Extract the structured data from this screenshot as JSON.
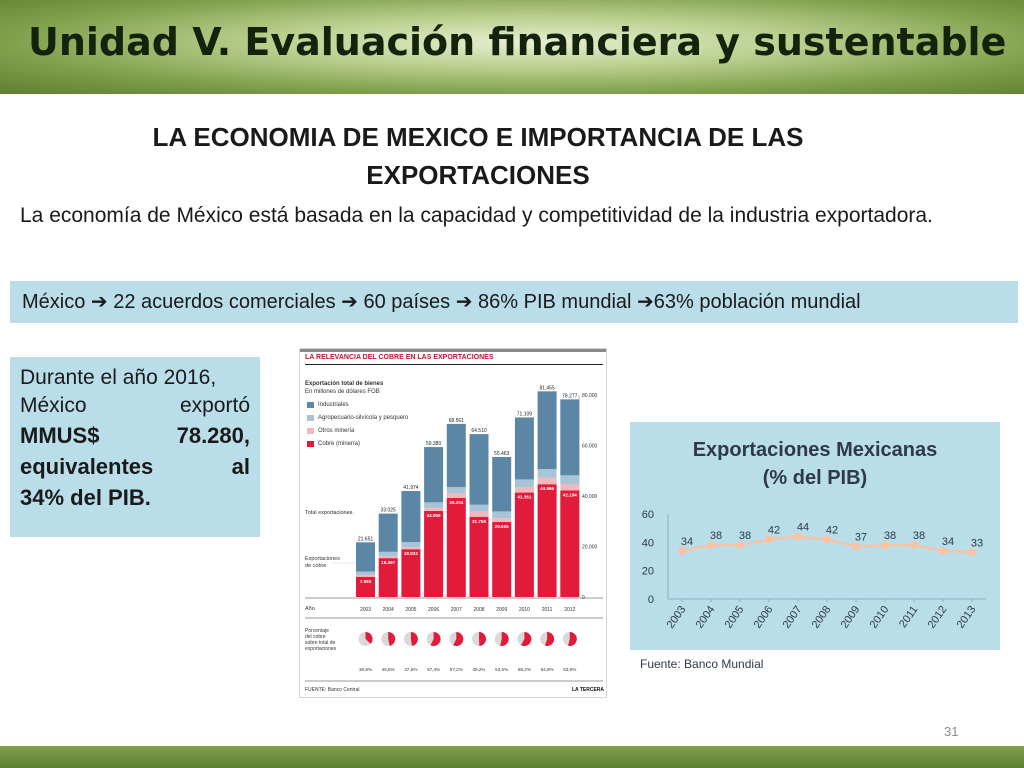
{
  "header": {
    "title": "Unidad V. Evaluación financiera y sustentable"
  },
  "section": {
    "title_line1": "LA ECONOMIA DE MEXICO E IMPORTANCIA DE LAS",
    "title_line2": "EXPORTACIONES"
  },
  "intro_text": "La economía de México está basada en la capacidad y competitividad de la industria exportadora.",
  "banner_text": "México  22 acuerdos comerciales  60 países  86% PIB mundial 63% población mundial",
  "banner": {
    "p1": "México ",
    "p2": " 22 acuerdos comerciales ",
    "p3": " 60 países ",
    "p4": " 86% PIB mundial ",
    "p5": "63% población mundial",
    "arrow": "➔"
  },
  "callout": {
    "l1a": "Durante el año 2016,",
    "l2a": "México",
    "l2b": "exportó",
    "l3a": "MMUS$",
    "l3b": "78.280,",
    "l4a": "equivalentes",
    "l4b": "al",
    "l5a": "34% del PIB."
  },
  "infographic": {
    "title": "LA RELEVANCIA DEL COBRE EN LAS EXPORTACIONES",
    "subtitle_bold": "Exportación total de bienes",
    "subtitle": "En millones de dólares FOB",
    "legend": [
      "Industriales",
      "Agropecuario-silvícola y pesquero",
      "Otros minería",
      "Cobre (minería)"
    ],
    "colors": {
      "industriales": "#5b86a6",
      "agro": "#a9c4d8",
      "otros": "#f2b8bd",
      "cobre": "#e31b3b"
    },
    "label_total": "Total exportaciones",
    "label_cobre_1": "Exportaciones",
    "label_cobre_2": "de cobre",
    "label_year": "Año",
    "label_pct_1": "Porcentaje",
    "label_pct_2": "del cobre",
    "label_pct_3": "sobre total de",
    "label_pct_4": "exportaciones",
    "yaxis_ticks": [
      "0",
      "20.000",
      "40.000",
      "60.000",
      "80.000"
    ],
    "source": "FUENTE: Banco Central",
    "brand": "LA TERCERA",
    "years": [
      "2003",
      "2004",
      "2005",
      "2006",
      "2007",
      "2008",
      "2009",
      "2010",
      "2011",
      "2012"
    ],
    "totals": [
      21651,
      33025,
      41974,
      59380,
      68561,
      64510,
      55463,
      71109,
      81455,
      78277
    ],
    "totals_labels": [
      "21.651",
      "33.025",
      "41.974",
      "59.380",
      "68.561",
      "64.510",
      "55.463",
      "71.109",
      "81.455",
      "78.277"
    ],
    "cobre": [
      7995,
      15397,
      18932,
      34069,
      39204,
      31755,
      29695,
      41361,
      44666,
      42184
    ],
    "cobre_labels": [
      "7.995",
      "15.397",
      "18.932",
      "34.069",
      "39.204",
      "31.755",
      "29.695",
      "41.361",
      "44.666",
      "42.184"
    ],
    "otros": [
      600,
      700,
      800,
      1200,
      1800,
      2000,
      1500,
      2200,
      2500,
      2400
    ],
    "agro": [
      1500,
      1800,
      2000,
      2200,
      2500,
      2800,
      2700,
      3000,
      3500,
      3600
    ],
    "pct": [
      36.9,
      46.6,
      47.5,
      57.4,
      57.2,
      49.2,
      53.5,
      58.2,
      54.8,
      53.9
    ],
    "pct_labels": [
      "36,9%",
      "46,6%",
      "47,5%",
      "57,4%",
      "57,2%",
      "49,2%",
      "53,5%",
      "58,2%",
      "54,8%",
      "53,9%"
    ]
  },
  "chart_data": {
    "type": "line",
    "title_line1": "Exportaciones Mexicanas",
    "title_line2": "(% del PIB)",
    "x": [
      "2003",
      "2004",
      "2005",
      "2006",
      "2007",
      "2008",
      "2009",
      "2010",
      "2011",
      "2012",
      "2013"
    ],
    "values": [
      34,
      38,
      38,
      42,
      44,
      42,
      37,
      38,
      38,
      34,
      33
    ],
    "ylim": [
      0,
      60
    ],
    "yticks": [
      "0",
      "20",
      "40",
      "60"
    ],
    "line_color": "#f7c3a4",
    "grid": false,
    "legend": "none"
  },
  "source_note": "Fuente: Banco Mundial",
  "page_number": "31"
}
